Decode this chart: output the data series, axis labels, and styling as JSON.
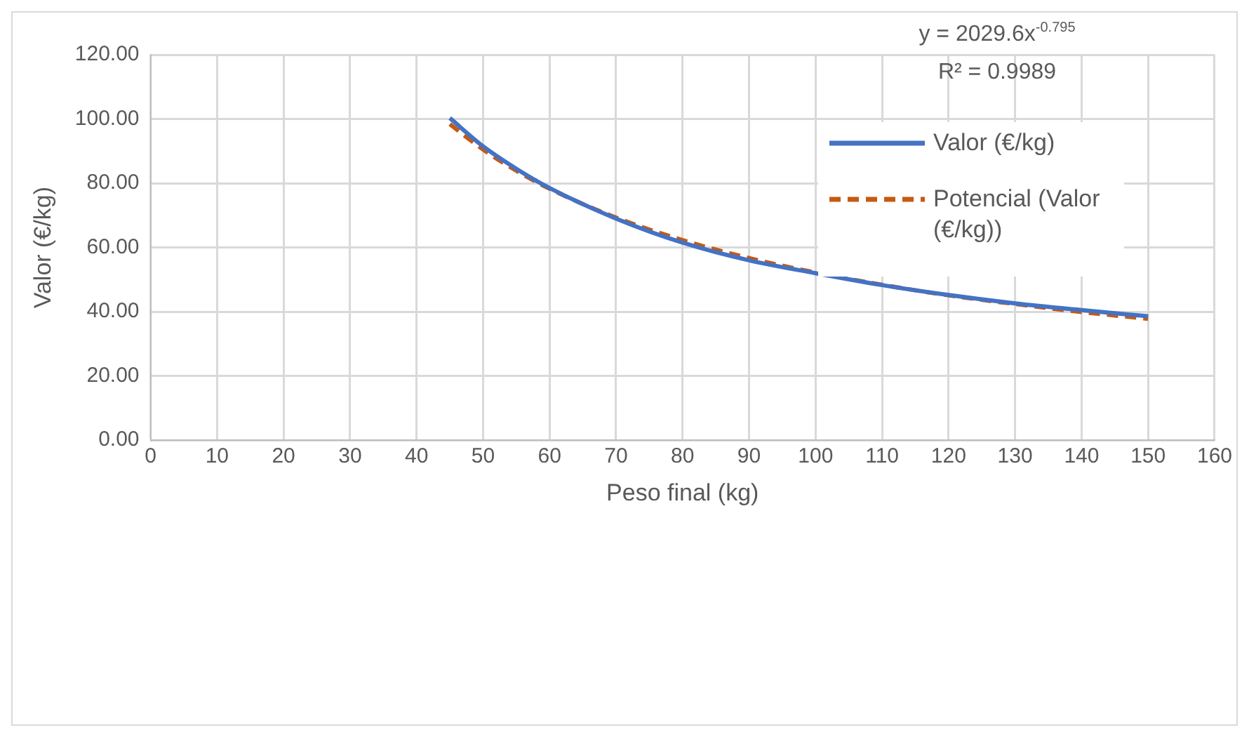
{
  "chart_data": {
    "type": "line",
    "xlabel": "Peso final (kg)",
    "ylabel": "Valor (€/kg)",
    "annotations": [
      "y = 2029.6x$^{-0.795}$",
      "R² = 0.9989"
    ],
    "series": [
      {
        "name": "Valor (€/kg)",
        "color": "#4472c4",
        "line_style": "solid",
        "x": [
          45,
          50,
          55,
          60,
          70,
          80,
          90,
          100,
          110,
          120,
          130,
          140,
          150
        ],
        "values": [
          100.3,
          91.5,
          84.5,
          78.5,
          69,
          61.5,
          56,
          52,
          48.3,
          45.2,
          42.6,
          40.5,
          38.6
        ]
      },
      {
        "name": "Potencial (Valor (€/kg))",
        "color": "#c55a11",
        "line_style": "dashed",
        "x": [
          45,
          50,
          55,
          60,
          70,
          80,
          90,
          100,
          110,
          120,
          130,
          140,
          150
        ],
        "values": [
          98.4,
          90.5,
          83.9,
          78.3,
          69.3,
          62.3,
          56.7,
          52.2,
          48.4,
          45.1,
          42.4,
          39.9,
          37.8
        ]
      }
    ],
    "xlim": [
      0,
      160
    ],
    "xticks": [
      0,
      10,
      20,
      30,
      40,
      50,
      60,
      70,
      80,
      90,
      100,
      110,
      120,
      130,
      140,
      150,
      160
    ],
    "ylim": [
      0,
      120
    ],
    "yticks": [
      {
        "value": 0,
        "label": "0.00"
      },
      {
        "value": 20,
        "label": "20.00"
      },
      {
        "value": 40,
        "label": "40.00"
      },
      {
        "value": 60,
        "label": "60.00"
      },
      {
        "value": 80,
        "label": "80.00"
      },
      {
        "value": 100,
        "label": "100.00"
      },
      {
        "value": 120,
        "label": "120.00"
      }
    ],
    "grid": true,
    "legend": "top right",
    "marker": "none"
  }
}
